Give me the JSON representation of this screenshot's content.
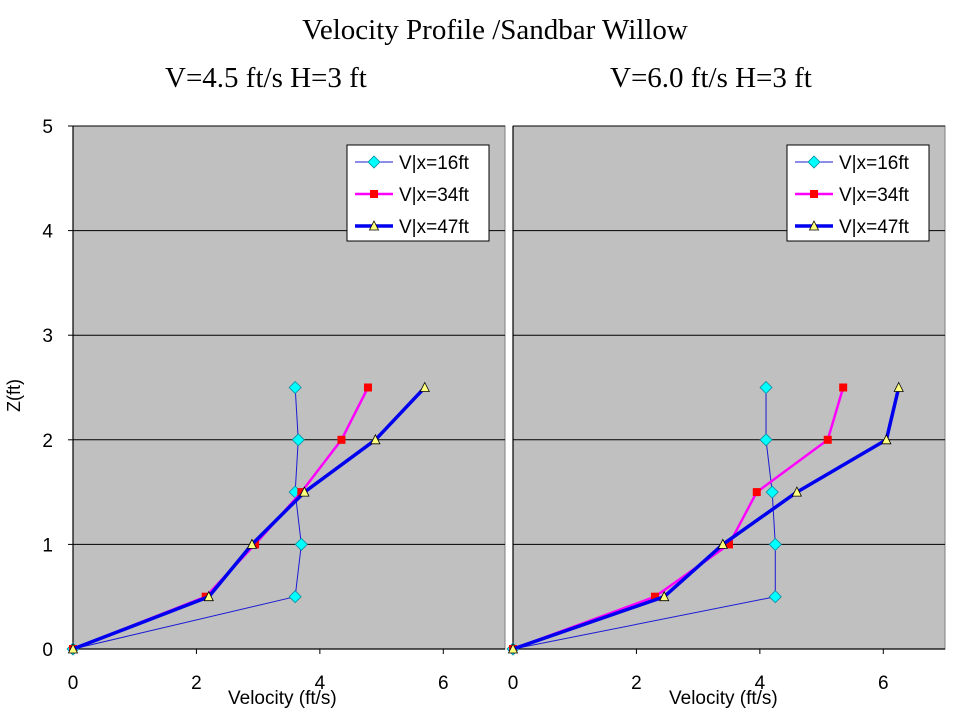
{
  "title": "Velocity Profile /Sandbar Willow",
  "colors": {
    "plot_bg": "#c0c0c0",
    "series16": "#1a1ad6",
    "series16_marker": "#00ffff",
    "series34": "#ff00ff",
    "series34_marker": "#ff0000",
    "series47": "#0000ee",
    "series47_marker": "#ffff80"
  },
  "chart_data": [
    {
      "type": "line",
      "title": "V=4.5 ft/s H=3 ft",
      "xlabel": "Velocity (ft/s)",
      "ylabel": "Z(ft)",
      "xlim": [
        0,
        7
      ],
      "ylim": [
        0,
        5
      ],
      "xticks": [
        "0",
        "2",
        "4",
        "6"
      ],
      "yticks": [
        "0",
        "1",
        "2",
        "3",
        "4",
        "5"
      ],
      "grid": true,
      "legend_position": "top-right",
      "series": [
        {
          "name": "V|x=16ft",
          "marker": "diamond",
          "x": [
            0,
            3.6,
            3.7,
            3.6,
            3.65,
            3.6
          ],
          "y": [
            0,
            0.5,
            1.0,
            1.5,
            2.0,
            2.5
          ]
        },
        {
          "name": "V|x=34ft",
          "marker": "square",
          "x": [
            0,
            2.15,
            2.95,
            3.7,
            4.35,
            4.78
          ],
          "y": [
            0,
            0.5,
            1.0,
            1.5,
            2.0,
            2.5
          ]
        },
        {
          "name": "V|x=47ft",
          "marker": "triangle",
          "x": [
            0,
            2.2,
            2.9,
            3.75,
            4.9,
            5.7
          ],
          "y": [
            0,
            0.5,
            1.0,
            1.5,
            2.0,
            2.5
          ]
        }
      ]
    },
    {
      "type": "line",
      "title": "V=6.0 ft/s H=3 ft",
      "xlabel": "Velocity (ft/s)",
      "ylabel": "",
      "xlim": [
        0,
        7
      ],
      "ylim": [
        0,
        5
      ],
      "xticks": [
        "0",
        "2",
        "4",
        "6"
      ],
      "yticks": [],
      "grid": true,
      "legend_position": "top-right",
      "series": [
        {
          "name": "V|x=16ft",
          "marker": "diamond",
          "x": [
            0,
            4.25,
            4.25,
            4.2,
            4.1,
            4.1
          ],
          "y": [
            0,
            0.5,
            1.0,
            1.5,
            2.0,
            2.5
          ]
        },
        {
          "name": "V|x=34ft",
          "marker": "square",
          "x": [
            0,
            2.3,
            3.5,
            3.95,
            5.1,
            5.35
          ],
          "y": [
            0,
            0.5,
            1.0,
            1.5,
            2.0,
            2.5
          ]
        },
        {
          "name": "V|x=47ft",
          "marker": "triangle",
          "x": [
            0,
            2.45,
            3.4,
            4.6,
            6.05,
            6.25
          ],
          "y": [
            0,
            0.5,
            1.0,
            1.5,
            2.0,
            2.5
          ]
        }
      ]
    }
  ]
}
